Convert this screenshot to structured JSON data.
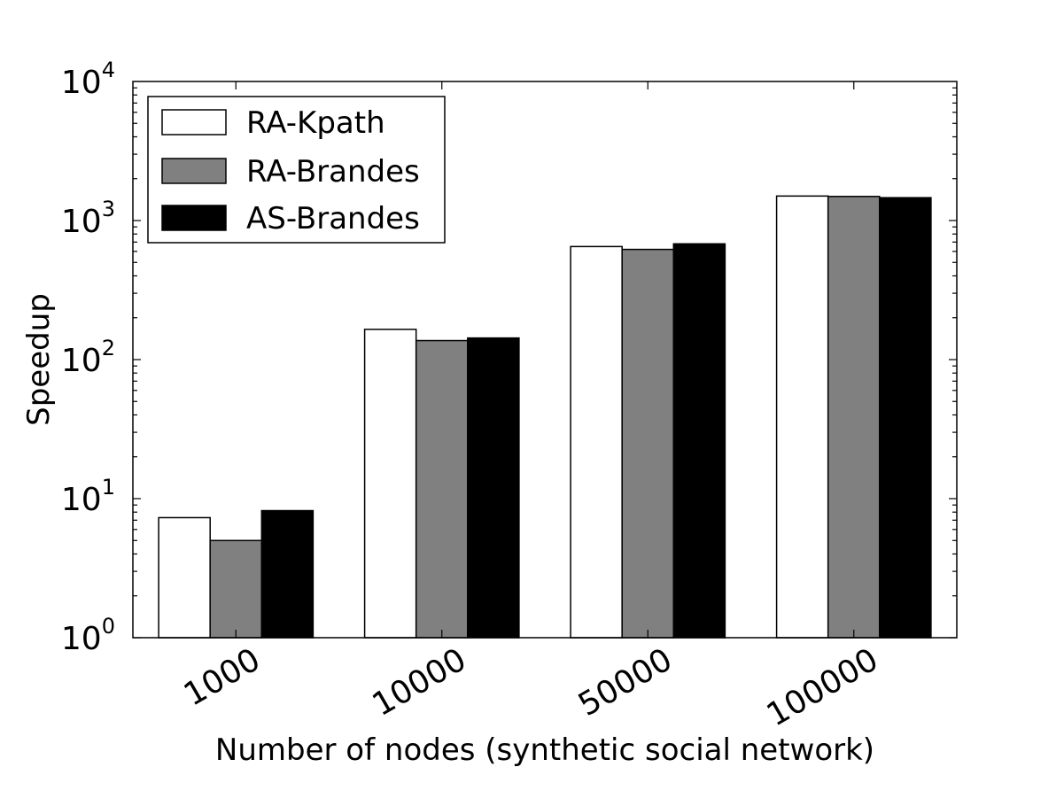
{
  "chart_data": {
    "type": "bar",
    "xlabel": "Number of nodes (synthetic social network)",
    "ylabel": "Speedup",
    "categories": [
      "1000",
      "10000",
      "50000",
      "100000"
    ],
    "yscale": "log",
    "ylim": [
      1,
      10000
    ],
    "ytick_labels": [
      {
        "base": "10",
        "exp": "0"
      },
      {
        "base": "10",
        "exp": "1"
      },
      {
        "base": "10",
        "exp": "2"
      },
      {
        "base": "10",
        "exp": "3"
      },
      {
        "base": "10",
        "exp": "4"
      }
    ],
    "series": [
      {
        "name": "RA-Kpath",
        "color": "#ffffff",
        "values": [
          7.3,
          165,
          650,
          1500
        ]
      },
      {
        "name": "RA-Brandes",
        "color": "#808080",
        "values": [
          5.0,
          137,
          620,
          1490
        ]
      },
      {
        "name": "AS-Brandes",
        "color": "#000000",
        "values": [
          8.2,
          143,
          680,
          1460
        ]
      }
    ],
    "legend_position": "top-left",
    "grid": false
  }
}
